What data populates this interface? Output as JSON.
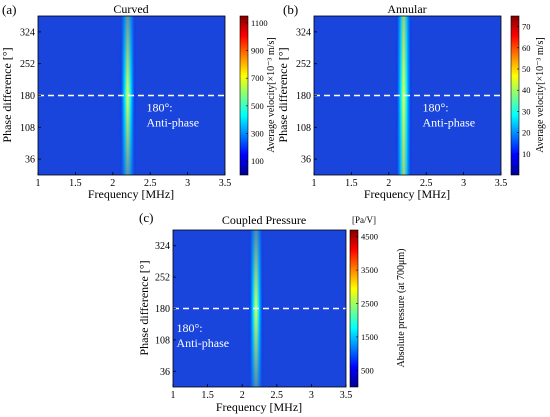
{
  "colormap": [
    "#00008f",
    "#0000ff",
    "#0080ff",
    "#00ffff",
    "#80ff80",
    "#ffff00",
    "#ff8000",
    "#ff0000",
    "#800000"
  ],
  "colors": {
    "background_field": "#1a45dc",
    "ridge_core": "#f6ff3a",
    "dashed_line": "#ffffff",
    "annotation_text": "#ffffff"
  },
  "chart_data": [
    {
      "type": "heatmap",
      "panel_label": "(a)",
      "title": "Curved",
      "xlabel": "Frequency [MHz]",
      "ylabel": "Phase difference [°]",
      "x_ticks": [
        1,
        1.5,
        2,
        2.5,
        3,
        3.5
      ],
      "x_tick_labels": [
        "1",
        "1.5",
        "2",
        "2.5",
        "3",
        "3.5"
      ],
      "y_ticks": [
        36,
        108,
        180,
        252,
        324
      ],
      "y_tick_labels": [
        "36",
        "108",
        "180",
        "252",
        "324"
      ],
      "xlim": [
        1,
        3.5
      ],
      "ylim": [
        0,
        360
      ],
      "colorbar": {
        "label": "Average velocity[×10⁻³ m/s]",
        "unit_top": "",
        "ticks": [
          100,
          300,
          500,
          700,
          900,
          1100
        ],
        "tick_labels": [
          "100",
          "300",
          "500",
          "700",
          "900",
          "1100"
        ],
        "range": [
          0,
          1150
        ]
      },
      "peak_frequency_mhz": 2.2,
      "peak_value_at_180": 950,
      "peak_value_at_0_360": 420,
      "background_value": 40,
      "reference_line": {
        "y": 180,
        "style": "dashed"
      },
      "annotation": {
        "lines": [
          "180°:",
          "Anti-phase"
        ],
        "x": 2.45,
        "y": 178
      }
    },
    {
      "type": "heatmap",
      "panel_label": "(b)",
      "title": "Annular",
      "xlabel": "Frequency [MHz]",
      "ylabel": "Phase difference [°]",
      "x_ticks": [
        1,
        1.5,
        2,
        2.5,
        3,
        3.5
      ],
      "x_tick_labels": [
        "1",
        "1.5",
        "2",
        "2.5",
        "3",
        "3.5"
      ],
      "y_ticks": [
        36,
        108,
        180,
        252,
        324
      ],
      "y_tick_labels": [
        "36",
        "108",
        "180",
        "252",
        "324"
      ],
      "xlim": [
        1,
        3.5
      ],
      "ylim": [
        0,
        360
      ],
      "colorbar": {
        "label": "Average velocity[×10⁻³ m/s]",
        "unit_top": "",
        "ticks": [
          10,
          20,
          30,
          40,
          50,
          60,
          70
        ],
        "tick_labels": [
          "10",
          "20",
          "30",
          "40",
          "50",
          "60",
          "70"
        ],
        "range": [
          0,
          75
        ]
      },
      "peak_frequency_mhz": 2.2,
      "peak_value_at_180": 40,
      "peak_value_at_0_360": 30,
      "background_value": 4,
      "reference_line": {
        "y": 180,
        "style": "dashed"
      },
      "annotation": {
        "lines": [
          "180°:",
          "Anti-phase"
        ],
        "x": 2.45,
        "y": 178
      }
    },
    {
      "type": "heatmap",
      "panel_label": "(c)",
      "title": "Coupled Pressure",
      "xlabel": "Frequency [MHz]",
      "ylabel": "Phase difference [°]",
      "x_ticks": [
        1,
        1.5,
        2,
        2.5,
        3,
        3.5
      ],
      "x_tick_labels": [
        "1",
        "1.5",
        "2",
        "2.5",
        "3",
        "3.5"
      ],
      "y_ticks": [
        36,
        108,
        180,
        252,
        324
      ],
      "y_tick_labels": [
        "36",
        "108",
        "180",
        "252",
        "324"
      ],
      "xlim": [
        1,
        3.5
      ],
      "ylim": [
        0,
        360
      ],
      "colorbar": {
        "label": "Absolute pressure (at 700μm)",
        "unit_top": "[Pa/V]",
        "ticks": [
          500,
          1500,
          2500,
          3500,
          4500
        ],
        "tick_labels": [
          "500",
          "1500",
          "2500",
          "3500",
          "4500"
        ],
        "range": [
          0,
          4700
        ]
      },
      "peak_frequency_mhz": 2.2,
      "peak_value_at_180": 3000,
      "peak_value_at_0_360": 1300,
      "background_value": 400,
      "reference_line": {
        "y": 180,
        "style": "dashed"
      },
      "annotation": {
        "lines": [
          "180°:",
          "Anti-phase"
        ],
        "x": 1.05,
        "y": 160
      }
    }
  ]
}
